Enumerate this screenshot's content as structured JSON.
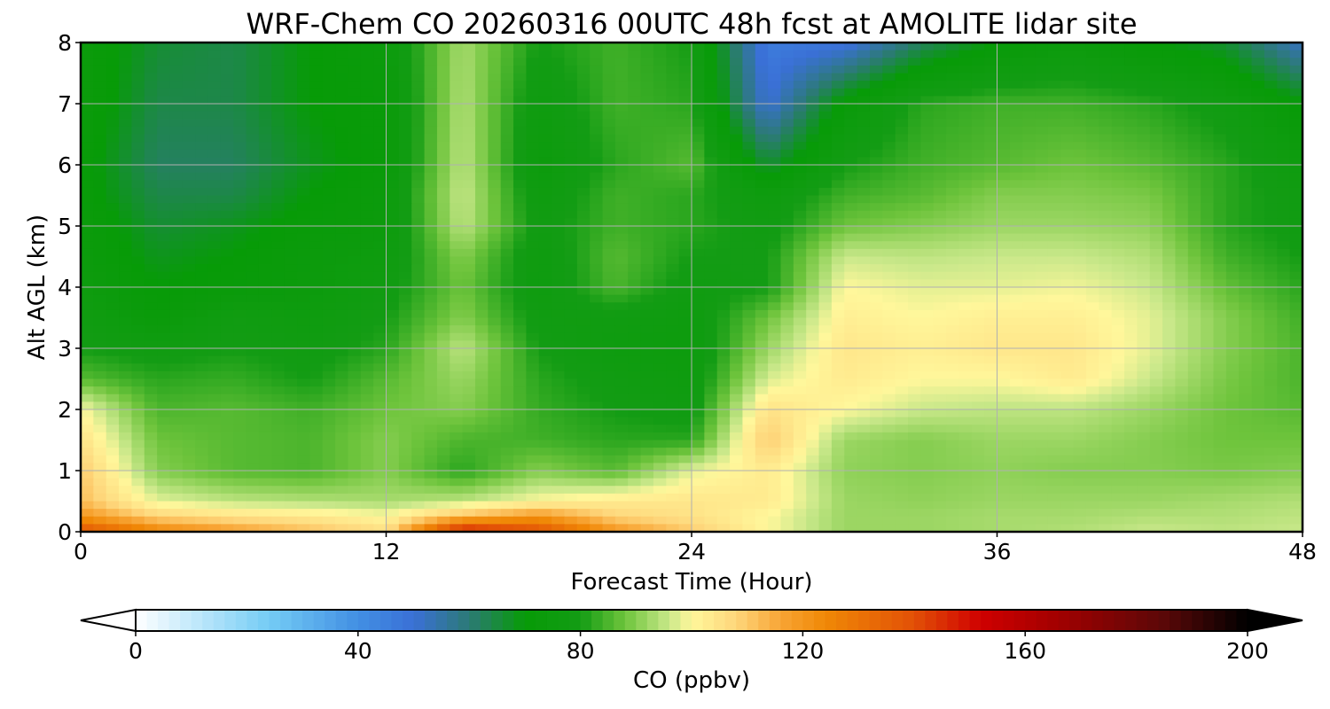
{
  "chart_data": {
    "type": "heatmap",
    "title": "WRF-Chem CO  20260316 00UTC 48h fcst at AMOLITE lidar site",
    "xlabel": "Forecast Time (Hour)",
    "ylabel": "Alt AGL (km)",
    "xlim": [
      0,
      48
    ],
    "ylim": [
      0,
      8
    ],
    "x_ticks": [
      0,
      12,
      24,
      36,
      48
    ],
    "x_tick_labels": [
      "0",
      "12",
      "24",
      "36",
      "48"
    ],
    "y_ticks": [
      0,
      1,
      2,
      3,
      4,
      5,
      6,
      7,
      8
    ],
    "y_tick_labels": [
      "0",
      "1",
      "2",
      "3",
      "4",
      "5",
      "6",
      "7",
      "8"
    ],
    "grid": true,
    "x_hours": [
      0,
      3,
      6,
      9,
      12,
      15,
      18,
      21,
      24,
      27,
      30,
      33,
      36,
      39,
      42,
      45,
      48
    ],
    "y_km": [
      0,
      0.25,
      0.5,
      1,
      1.5,
      2,
      2.5,
      3,
      3.5,
      4,
      4.5,
      5,
      5.5,
      6,
      7,
      8
    ],
    "values_ppbv": [
      [
        140,
        125,
        118,
        112,
        106,
        152,
        140,
        120,
        110,
        100,
        92,
        92,
        93,
        94,
        96,
        95,
        96
      ],
      [
        120,
        108,
        105,
        103,
        100,
        112,
        120,
        108,
        105,
        100,
        92,
        92,
        93,
        93,
        94,
        94,
        95
      ],
      [
        112,
        98,
        95,
        94,
        93,
        95,
        100,
        103,
        104,
        103,
        92,
        91,
        92,
        92,
        92,
        93,
        94
      ],
      [
        110,
        90,
        86,
        85,
        90,
        82,
        90,
        86,
        98,
        103,
        91,
        90,
        91,
        90,
        90,
        89,
        90
      ],
      [
        105,
        88,
        86,
        85,
        90,
        85,
        84,
        82,
        82,
        110,
        92,
        90,
        92,
        92,
        90,
        88,
        88
      ],
      [
        100,
        85,
        86,
        84,
        88,
        90,
        83,
        80,
        78,
        105,
        100,
        96,
        95,
        95,
        92,
        88,
        86
      ],
      [
        86,
        82,
        83,
        80,
        86,
        92,
        82,
        78,
        76,
        97,
        103,
        100,
        100,
        103,
        96,
        89,
        85
      ],
      [
        80,
        78,
        80,
        78,
        82,
        95,
        80,
        76,
        75,
        92,
        104,
        102,
        104,
        104,
        98,
        90,
        85
      ],
      [
        78,
        72,
        78,
        76,
        80,
        90,
        78,
        78,
        76,
        88,
        102,
        100,
        102,
        102,
        98,
        90,
        84
      ],
      [
        76,
        70,
        72,
        74,
        78,
        88,
        76,
        85,
        78,
        80,
        100,
        98,
        98,
        99,
        96,
        87,
        82
      ],
      [
        74,
        68,
        70,
        74,
        76,
        90,
        76,
        86,
        80,
        80,
        96,
        95,
        96,
        96,
        94,
        84,
        80
      ],
      [
        74,
        66,
        68,
        72,
        74,
        95,
        78,
        84,
        82,
        78,
        88,
        90,
        92,
        92,
        91,
        82,
        78
      ],
      [
        72,
        64,
        64,
        70,
        74,
        96,
        76,
        84,
        82,
        76,
        84,
        86,
        90,
        90,
        89,
        82,
        78
      ],
      [
        72,
        62,
        62,
        68,
        72,
        95,
        74,
        82,
        86,
        66,
        80,
        84,
        86,
        88,
        86,
        82,
        76
      ],
      [
        74,
        64,
        64,
        70,
        72,
        94,
        76,
        84,
        82,
        50,
        72,
        82,
        84,
        84,
        82,
        78,
        70
      ],
      [
        74,
        66,
        64,
        70,
        74,
        93,
        80,
        84,
        80,
        46,
        48,
        62,
        70,
        74,
        70,
        66,
        52
      ]
    ],
    "colorbar": {
      "label": "CO  (ppbv)",
      "range": [
        0,
        200
      ],
      "ticks": [
        0,
        40,
        80,
        120,
        160,
        200
      ],
      "tick_labels": [
        "0",
        "40",
        "80",
        "120",
        "160",
        "200"
      ],
      "extend": "both",
      "colormap": [
        {
          "v": 0,
          "c": "#ffffff"
        },
        {
          "v": 8,
          "c": "#d0eefc"
        },
        {
          "v": 24,
          "c": "#74ccf5"
        },
        {
          "v": 40,
          "c": "#428fe3"
        },
        {
          "v": 50,
          "c": "#3a70d6"
        },
        {
          "v": 60,
          "c": "#2c7a75"
        },
        {
          "v": 70,
          "c": "#079b07"
        },
        {
          "v": 80,
          "c": "#139c14"
        },
        {
          "v": 88,
          "c": "#6ec43c"
        },
        {
          "v": 96,
          "c": "#c9e88a"
        },
        {
          "v": 100,
          "c": "#fff79b"
        },
        {
          "v": 108,
          "c": "#fed67b"
        },
        {
          "v": 116,
          "c": "#f8a535"
        },
        {
          "v": 124,
          "c": "#f08806"
        },
        {
          "v": 140,
          "c": "#e25006"
        },
        {
          "v": 152,
          "c": "#cf0000"
        },
        {
          "v": 165,
          "c": "#a50000"
        },
        {
          "v": 185,
          "c": "#5a0808"
        },
        {
          "v": 200,
          "c": "#000000"
        }
      ]
    }
  }
}
